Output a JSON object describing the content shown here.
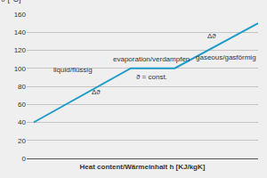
{
  "chart_data": {
    "type": "line",
    "xlabel": "Heat content/Wärmeinhalt h [KJ/kgK]",
    "ylabel": "ϑ [°C]",
    "x": [
      3,
      45,
      64,
      100
    ],
    "values": [
      40,
      100,
      100,
      150
    ],
    "color": "#1f9bc8",
    "xlim": [
      0,
      100
    ],
    "ylim": [
      0,
      160
    ],
    "yticks": [
      0,
      20,
      40,
      60,
      80,
      100,
      120,
      140,
      160
    ],
    "grid": true,
    "tick_labels": "y",
    "annotations": [
      {
        "text": "liquid/flüssig",
        "x": 20,
        "y": 98
      },
      {
        "text": "Δϑ",
        "x": 30,
        "y": 74
      },
      {
        "text": "evaporation/verdampfen",
        "x": 54,
        "y": 110
      },
      {
        "text": "ϑ = const.",
        "x": 54,
        "y": 90
      },
      {
        "text": "gaseous/gasförmig",
        "x": 86,
        "y": 112
      },
      {
        "text": "Δϑ",
        "x": 80,
        "y": 136
      }
    ]
  }
}
